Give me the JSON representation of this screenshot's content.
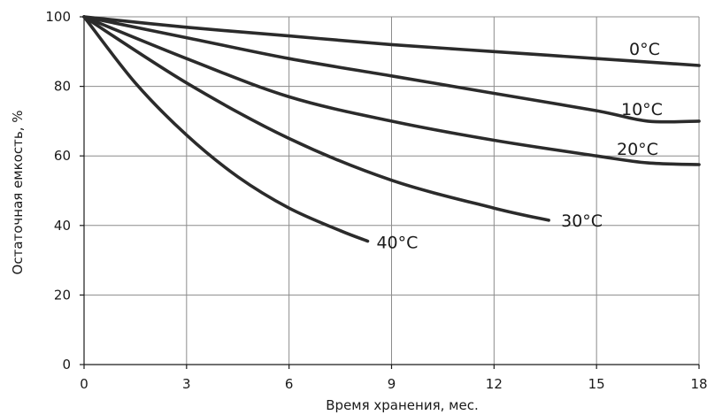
{
  "chart_data": {
    "type": "line",
    "xlabel": "Время хранения, мес.",
    "ylabel": "Остаточная емкость, %",
    "xlim": [
      0,
      18
    ],
    "ylim": [
      0,
      100
    ],
    "xticks": [
      0,
      3,
      6,
      9,
      12,
      15,
      18
    ],
    "yticks": [
      0,
      20,
      40,
      60,
      80,
      100
    ],
    "xtick_labels": [
      "0",
      "3",
      "6",
      "9",
      "12",
      "15",
      "18"
    ],
    "ytick_labels": [
      "0",
      "20",
      "40",
      "60",
      "80",
      "100"
    ],
    "grid": true,
    "legend": "inline labels at line ends",
    "line_color": "#2b2b2b",
    "series": [
      {
        "name": "0°C",
        "x": [
          0,
          3,
          6,
          9,
          12,
          15,
          18
        ],
        "y": [
          100,
          97,
          94.5,
          92,
          90,
          88,
          86
        ]
      },
      {
        "name": "10°C",
        "x": [
          0,
          3,
          6,
          9,
          12,
          15,
          16.5,
          18
        ],
        "y": [
          100,
          94,
          88,
          83,
          78,
          73,
          70,
          70
        ]
      },
      {
        "name": "20°C",
        "x": [
          0,
          3,
          6,
          9,
          12,
          15,
          16.5,
          18
        ],
        "y": [
          100,
          88,
          77,
          70,
          64.5,
          60,
          58,
          57.5
        ]
      },
      {
        "name": "30°C",
        "x": [
          0,
          3,
          6,
          9,
          12,
          13.6
        ],
        "y": [
          100,
          81,
          65,
          53,
          45,
          41.5
        ]
      },
      {
        "name": "40°C",
        "x": [
          0,
          1.5,
          3,
          4.5,
          6,
          7.5,
          8.3
        ],
        "y": [
          100,
          81,
          66,
          54,
          45,
          38.5,
          35.5
        ]
      }
    ]
  }
}
